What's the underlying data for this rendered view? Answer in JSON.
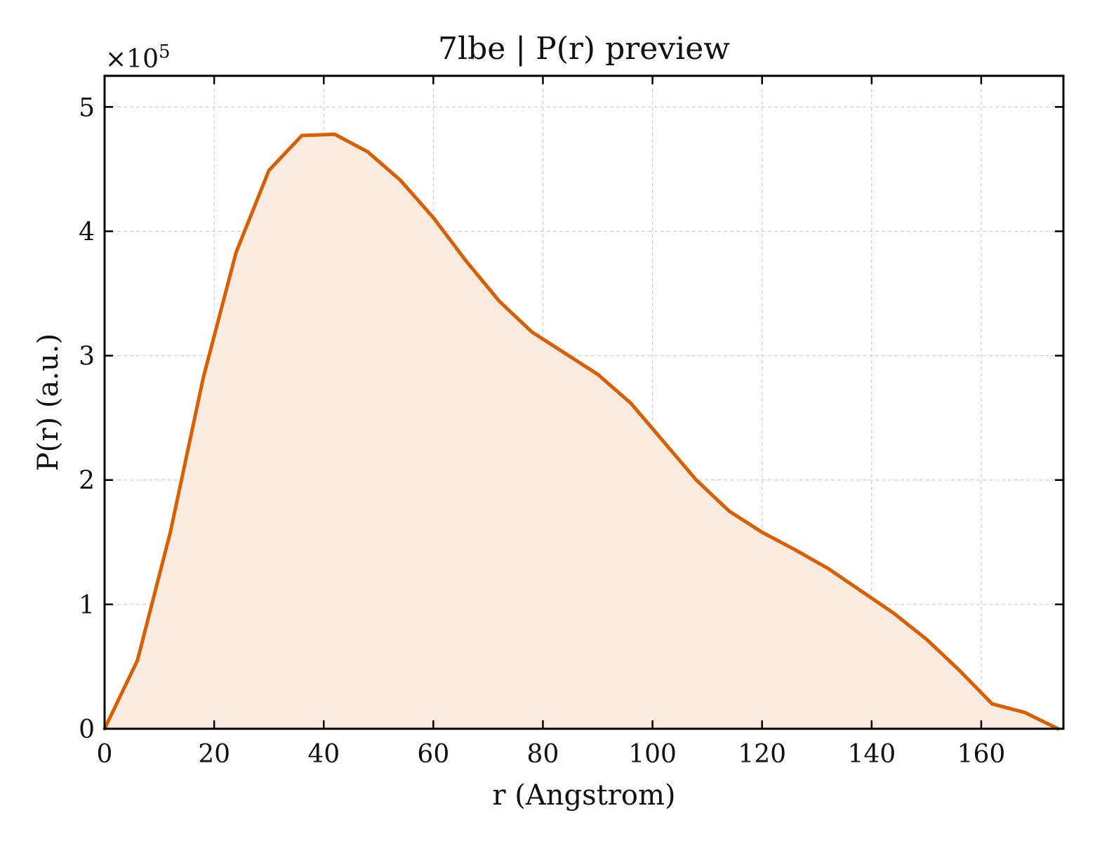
{
  "chart_data": {
    "type": "area",
    "title": "7lbe | P(r) preview",
    "xlabel": "r (Angstrom)",
    "ylabel": "P(r) (a.u.)",
    "y_multiplier": "×10",
    "y_multiplier_exp": "5",
    "xlim": [
      0,
      175
    ],
    "ylim": [
      0,
      5.25
    ],
    "xticks": [
      0,
      20,
      40,
      60,
      80,
      100,
      120,
      140,
      160
    ],
    "yticks": [
      0,
      1,
      2,
      3,
      4,
      5
    ],
    "grid": true,
    "series": [
      {
        "color": "#d95f02",
        "fill_color": "#f9ebe0",
        "x": [
          0,
          6,
          12,
          18,
          24,
          30,
          36,
          42,
          48,
          54,
          60,
          66,
          72,
          78,
          84,
          90,
          96,
          102,
          108,
          114,
          120,
          126,
          132,
          138,
          144,
          150,
          156,
          162,
          168,
          174
        ],
        "y": [
          0.0,
          0.55,
          1.58,
          2.82,
          3.83,
          4.49,
          4.77,
          4.78,
          4.64,
          4.41,
          4.11,
          3.76,
          3.44,
          3.19,
          3.02,
          2.85,
          2.62,
          2.31,
          2.0,
          1.75,
          1.58,
          1.44,
          1.29,
          1.11,
          0.93,
          0.72,
          0.47,
          0.2,
          0.13,
          0.0
        ]
      }
    ]
  }
}
